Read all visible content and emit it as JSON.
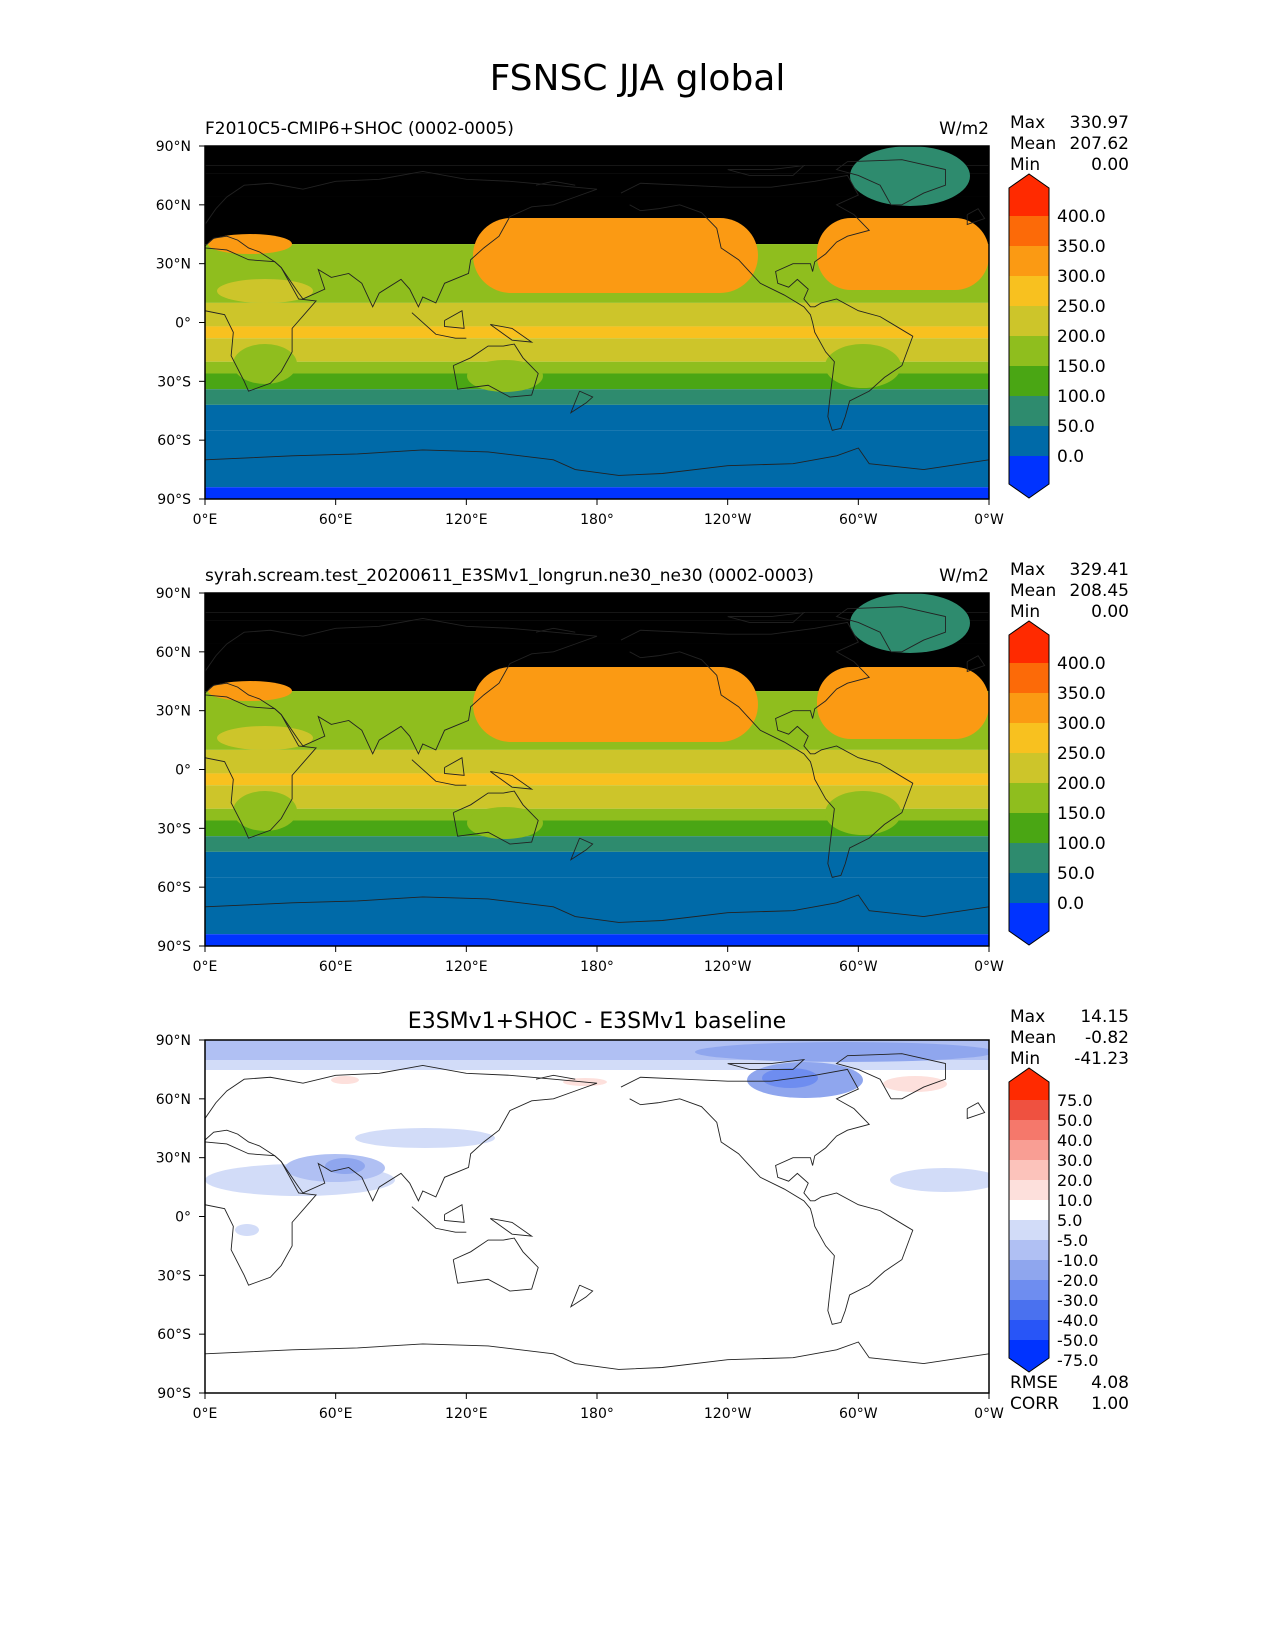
{
  "title": "FSNSC JJA global",
  "colors": {
    "ref_levels": [
      "#0033ff",
      "#006aa8",
      "#2e8b6e",
      "#4aa614",
      "#8fbe1e",
      "#cdc52a",
      "#f8c11f",
      "#fb9a13",
      "#fc6a08",
      "#ff2a00"
    ],
    "diff_levels": [
      "#0033ff",
      "#2855f7",
      "#4a71ef",
      "#6e8df0",
      "#8fa6ee",
      "#b0c0f3",
      "#d2dcf8",
      "#ffffff",
      "#fde0dc",
      "#fcc3bb",
      "#f99e94",
      "#f5786b",
      "#ef5140",
      "#ff2a00"
    ]
  },
  "axes": {
    "yticks": [
      "90°N",
      "60°N",
      "30°N",
      "0°",
      "30°S",
      "60°S",
      "90°S"
    ],
    "xticks": [
      "0°E",
      "60°E",
      "120°E",
      "180°",
      "120°W",
      "60°W",
      "0°W"
    ]
  },
  "chart_data": [
    {
      "type": "heatmap",
      "title": "F2010C5-CMIP6+SHOC (0002-0005)",
      "units": "W/m2",
      "stats": [
        {
          "label": "Max",
          "value": "330.97"
        },
        {
          "label": "Mean",
          "value": "207.62"
        },
        {
          "label": "Min",
          "value": "0.00"
        }
      ],
      "colorbar_labels": [
        "400.0",
        "350.0",
        "300.0",
        "250.0",
        "200.0",
        "150.0",
        "100.0",
        "50.0",
        "0.0"
      ],
      "x_range": [
        0,
        360
      ],
      "y_range": [
        -90,
        90
      ]
    },
    {
      "type": "heatmap",
      "title": "syrah.scream.test_20200611_E3SMv1_longrun.ne30_ne30 (0002-0003)",
      "units": "W/m2",
      "stats": [
        {
          "label": "Max",
          "value": "329.41"
        },
        {
          "label": "Mean",
          "value": "208.45"
        },
        {
          "label": "Min",
          "value": "0.00"
        }
      ],
      "colorbar_labels": [
        "400.0",
        "350.0",
        "300.0",
        "250.0",
        "200.0",
        "150.0",
        "100.0",
        "50.0",
        "0.0"
      ],
      "x_range": [
        0,
        360
      ],
      "y_range": [
        -90,
        90
      ]
    },
    {
      "type": "heatmap",
      "title": "E3SMv1+SHOC - E3SMv1 baseline",
      "units": "",
      "stats": [
        {
          "label": "Max",
          "value": "14.15"
        },
        {
          "label": "Mean",
          "value": "-0.82"
        },
        {
          "label": "Min",
          "value": "-41.23"
        }
      ],
      "colorbar_labels": [
        "75.0",
        "50.0",
        "40.0",
        "30.0",
        "20.0",
        "10.0",
        "5.0",
        "-5.0",
        "-10.0",
        "-20.0",
        "-30.0",
        "-40.0",
        "-50.0",
        "-75.0"
      ],
      "metrics": [
        {
          "label": "RMSE",
          "value": "4.08"
        },
        {
          "label": "CORR",
          "value": "1.00"
        }
      ],
      "x_range": [
        0,
        360
      ],
      "y_range": [
        -90,
        90
      ]
    }
  ]
}
